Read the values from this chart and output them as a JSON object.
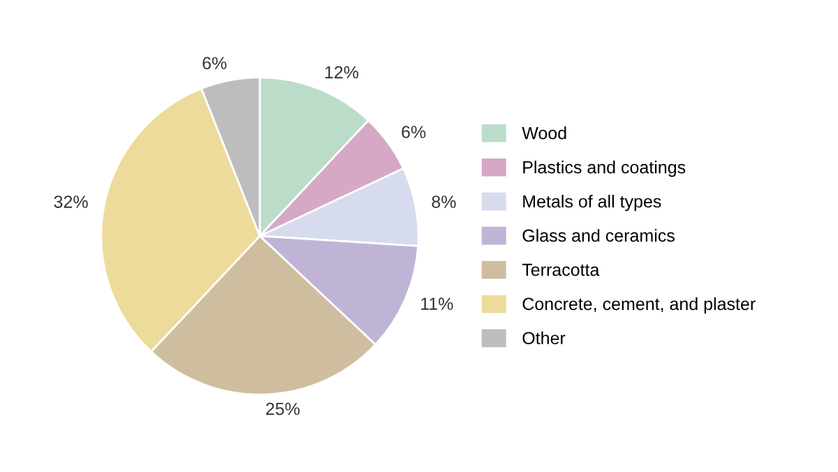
{
  "chart_data": {
    "type": "pie",
    "categories": [
      "Wood",
      "Plastics and coatings",
      "Metals of all types",
      "Glass and ceramics",
      "Terracotta",
      "Concrete, cement, and plaster",
      "Other"
    ],
    "values": [
      12,
      6,
      8,
      11,
      25,
      32,
      6
    ],
    "colors": [
      "#bcdcca",
      "#d6a8c6",
      "#d6dbed",
      "#bfb4d6",
      "#cebe9f",
      "#eddb9b",
      "#bdbdbd"
    ],
    "value_labels": [
      "12%",
      "6%",
      "8%",
      "11%",
      "25%",
      "32%",
      "6%"
    ],
    "legend": "right"
  }
}
